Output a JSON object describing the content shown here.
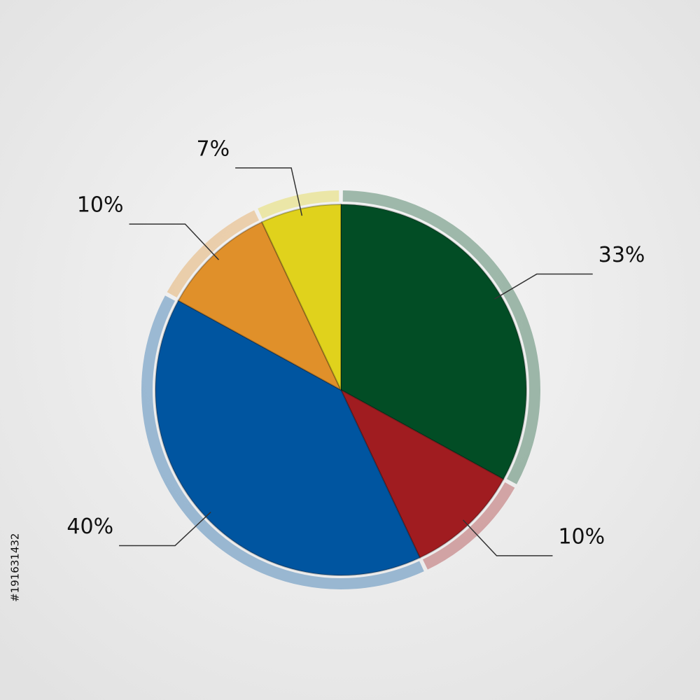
{
  "chart_data": {
    "type": "pie",
    "categories": [
      null,
      null,
      null,
      null,
      null
    ],
    "values": [
      33,
      10,
      40,
      10,
      7
    ],
    "value_labels": [
      "33%",
      "10%",
      "40%",
      "10%",
      "7%"
    ],
    "colors": [
      "#024d25",
      "#a01c20",
      "#0055a0",
      "#e0902a",
      "#e0d21c"
    ]
  },
  "watermark": "#191631432"
}
